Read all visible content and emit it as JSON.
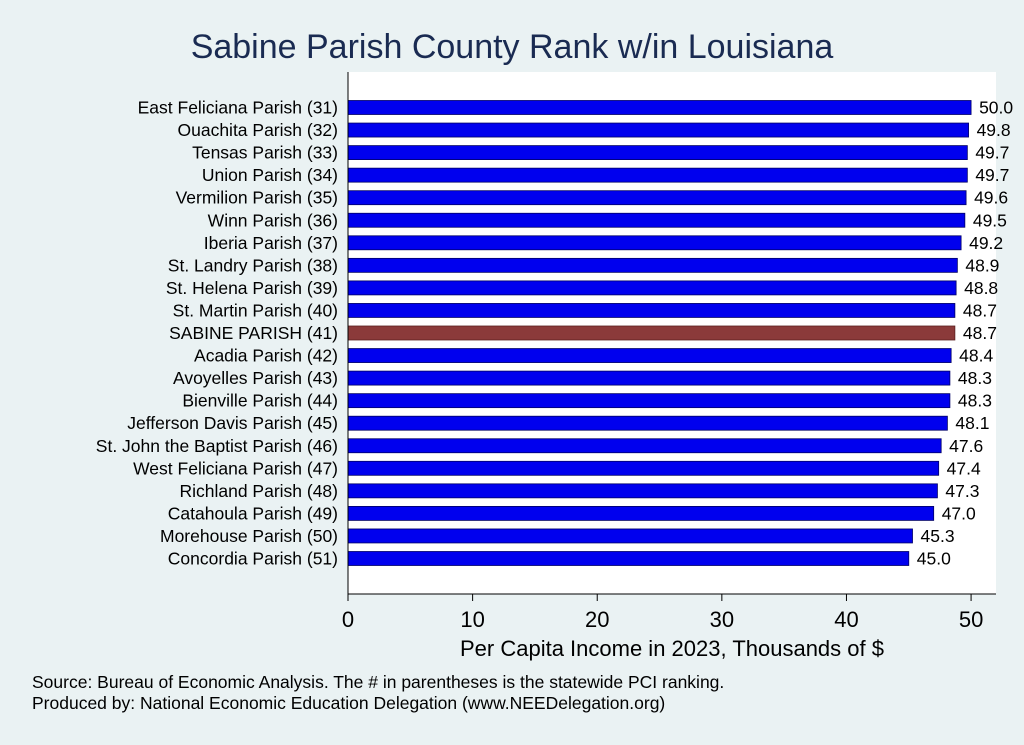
{
  "chart_data": {
    "type": "bar",
    "orientation": "horizontal",
    "title": "Sabine Parish County Rank w/in Louisiana",
    "xlabel": "Per Capita Income in 2023, Thousands of $",
    "ylabel": "",
    "xlim": [
      0,
      52
    ],
    "xticks": [
      0,
      10,
      20,
      30,
      40,
      50
    ],
    "grid": false,
    "colors": {
      "default": "#0000ee",
      "highlight": "#8b3a3a",
      "plot_background": "#ffffff",
      "page_background": "#eaf2f3"
    },
    "highlight_category": "SABINE PARISH (41)",
    "categories": [
      "East Feliciana Parish (31)",
      "Ouachita Parish (32)",
      "Tensas Parish (33)",
      "Union Parish (34)",
      "Vermilion Parish (35)",
      "Winn Parish (36)",
      "Iberia Parish (37)",
      "St. Landry Parish (38)",
      "St. Helena Parish (39)",
      "St. Martin Parish (40)",
      "SABINE PARISH (41)",
      "Acadia Parish (42)",
      "Avoyelles Parish (43)",
      "Bienville Parish (44)",
      "Jefferson Davis Parish (45)",
      "St. John the Baptist Parish (46)",
      "West Feliciana Parish (47)",
      "Richland Parish (48)",
      "Catahoula Parish (49)",
      "Morehouse Parish (50)",
      "Concordia Parish (51)"
    ],
    "values": [
      50.0,
      49.8,
      49.7,
      49.7,
      49.6,
      49.5,
      49.2,
      48.9,
      48.8,
      48.7,
      48.7,
      48.4,
      48.3,
      48.3,
      48.1,
      47.6,
      47.4,
      47.3,
      47.0,
      45.3,
      45.0
    ],
    "value_labels": [
      "50.0",
      "49.8",
      "49.7",
      "49.7",
      "49.6",
      "49.5",
      "49.2",
      "48.9",
      "48.8",
      "48.7",
      "48.7",
      "48.4",
      "48.3",
      "48.3",
      "48.1",
      "47.6",
      "47.4",
      "47.3",
      "47.0",
      "45.3",
      "45.0"
    ]
  },
  "notes": {
    "source": "Source: Bureau of Economic Analysis. The # in parentheses is the statewide PCI ranking.",
    "produced_by": "Produced by: National Economic Education Delegation (www.NEEDelegation.org)"
  }
}
